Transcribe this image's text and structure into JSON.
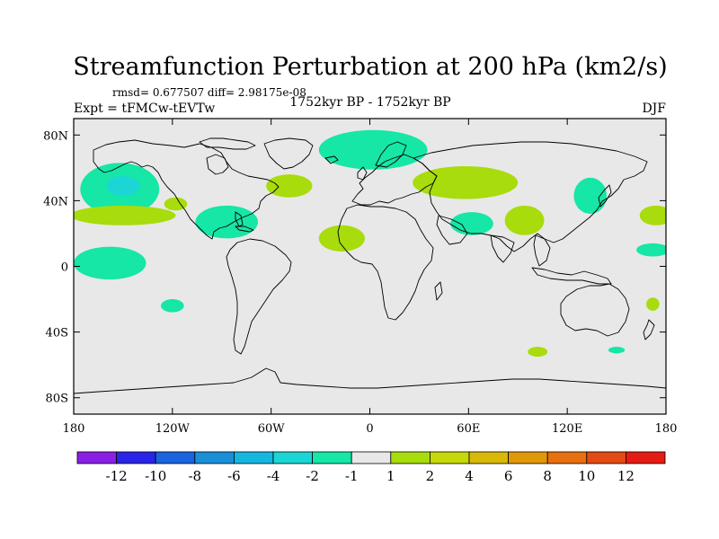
{
  "title": "Streamfunction Perturbation at 200 hPa (km2/s)",
  "stats": "rmsd= 0.677507 diff= 2.98175e-08",
  "left_label": "Expt = tFMCw-tEVTw",
  "center_label": "1752kyr BP - 1752kyr BP",
  "right_label": "DJF",
  "map": {
    "lon_range": [
      -180,
      180
    ],
    "lat_range": [
      -90,
      90
    ],
    "background_color": "#e8e8e8",
    "coastline_color": "#000000",
    "x_ticks": [
      {
        "lon": -180,
        "label": "180"
      },
      {
        "lon": -120,
        "label": "120W"
      },
      {
        "lon": -60,
        "label": "60W"
      },
      {
        "lon": 0,
        "label": "0"
      },
      {
        "lon": 60,
        "label": "60E"
      },
      {
        "lon": 120,
        "label": "120E"
      },
      {
        "lon": 180,
        "label": "180"
      }
    ],
    "y_ticks": [
      {
        "lat": 80,
        "label": "80N"
      },
      {
        "lat": 40,
        "label": "40N"
      },
      {
        "lat": 0,
        "label": "0"
      },
      {
        "lat": -40,
        "label": "40S"
      },
      {
        "lat": -80,
        "label": "80S"
      }
    ],
    "regions": [
      {
        "name": "north-pacific-low",
        "level": "-2 to -1",
        "lon": -152,
        "lat": 47,
        "rlon": 24,
        "rlat": 16
      },
      {
        "name": "north-pacific-core",
        "level": "-4 to -2",
        "lon": -150,
        "lat": 49,
        "rlon": 10,
        "rlat": 6
      },
      {
        "name": "subtropical-pacific-band",
        "level": "1 to 2",
        "lon": -150,
        "lat": 31,
        "rlon": 32,
        "rlat": 6
      },
      {
        "name": "east-pacific-tail",
        "level": "1 to 2",
        "lon": -118,
        "lat": 38,
        "rlon": 7,
        "rlat": 4
      },
      {
        "name": "tropical-east-pacific",
        "level": "-2 to -1",
        "lon": -158,
        "lat": 2,
        "rlon": 22,
        "rlat": 10
      },
      {
        "name": "south-pacific-patch",
        "level": "-2 to -1",
        "lon": -120,
        "lat": -24,
        "rlon": 7,
        "rlat": 4
      },
      {
        "name": "gulf-of-mexico",
        "level": "-2 to -1",
        "lon": -87,
        "lat": 27,
        "rlon": 19,
        "rlat": 10
      },
      {
        "name": "north-atlantic-west",
        "level": "1 to 2",
        "lon": -49,
        "lat": 49,
        "rlon": 14,
        "rlat": 7
      },
      {
        "name": "arctic-north-atlantic",
        "level": "-2 to -1",
        "lon": 2,
        "lat": 71,
        "rlon": 33,
        "rlat": 12
      },
      {
        "name": "tropical-north-africa",
        "level": "1 to 2",
        "lon": -17,
        "lat": 17,
        "rlon": 14,
        "rlat": 8
      },
      {
        "name": "eurasia-band",
        "level": "1 to 2",
        "lon": 58,
        "lat": 51,
        "rlon": 32,
        "rlat": 10
      },
      {
        "name": "middle-east",
        "level": "-2 to -1",
        "lon": 62,
        "lat": 26,
        "rlon": 13,
        "rlat": 7
      },
      {
        "name": "south-asia",
        "level": "1 to 2",
        "lon": 94,
        "lat": 28,
        "rlon": 12,
        "rlat": 9
      },
      {
        "name": "east-asia",
        "level": "-2 to -1",
        "lon": 134,
        "lat": 43,
        "rlon": 10,
        "rlat": 11
      },
      {
        "name": "north-west-pacific-edge",
        "level": "1 to 2",
        "lon": 174,
        "lat": 31,
        "rlon": 10,
        "rlat": 6
      },
      {
        "name": "tropical-west-pacific-edge",
        "level": "-2 to -1",
        "lon": 172,
        "lat": 10,
        "rlon": 10,
        "rlat": 4
      },
      {
        "name": "indian-ocean-south",
        "level": "1 to 2",
        "lon": 102,
        "lat": -52,
        "rlon": 6,
        "rlat": 3
      },
      {
        "name": "southern-ocean-tasman",
        "level": "-2 to -1",
        "lon": 150,
        "lat": -51,
        "rlon": 5,
        "rlat": 2
      },
      {
        "name": "new-zealand-patch",
        "level": "1 to 2",
        "lon": 172,
        "lat": -23,
        "rlon": 4,
        "rlat": 4
      }
    ]
  },
  "colorbar": {
    "colors": [
      "#8a20e6",
      "#2a24e6",
      "#1a64e0",
      "#1a8fd8",
      "#16b6e0",
      "#1cd6d6",
      "#16e6a6",
      "#e8e8e8",
      "#a8dc0c",
      "#c6d80a",
      "#d8b808",
      "#e0980a",
      "#e87010",
      "#e44a14",
      "#e61c14"
    ],
    "level_colors": {
      "-4 to -2": "#1cd6d6",
      "-2 to -1": "#16e6a6",
      "1 to 2": "#a8dc0c"
    },
    "labels": [
      "-12",
      "-10",
      "-8",
      "-6",
      "-4",
      "-2",
      "-1",
      "1",
      "2",
      "4",
      "6",
      "8",
      "10",
      "12"
    ]
  }
}
